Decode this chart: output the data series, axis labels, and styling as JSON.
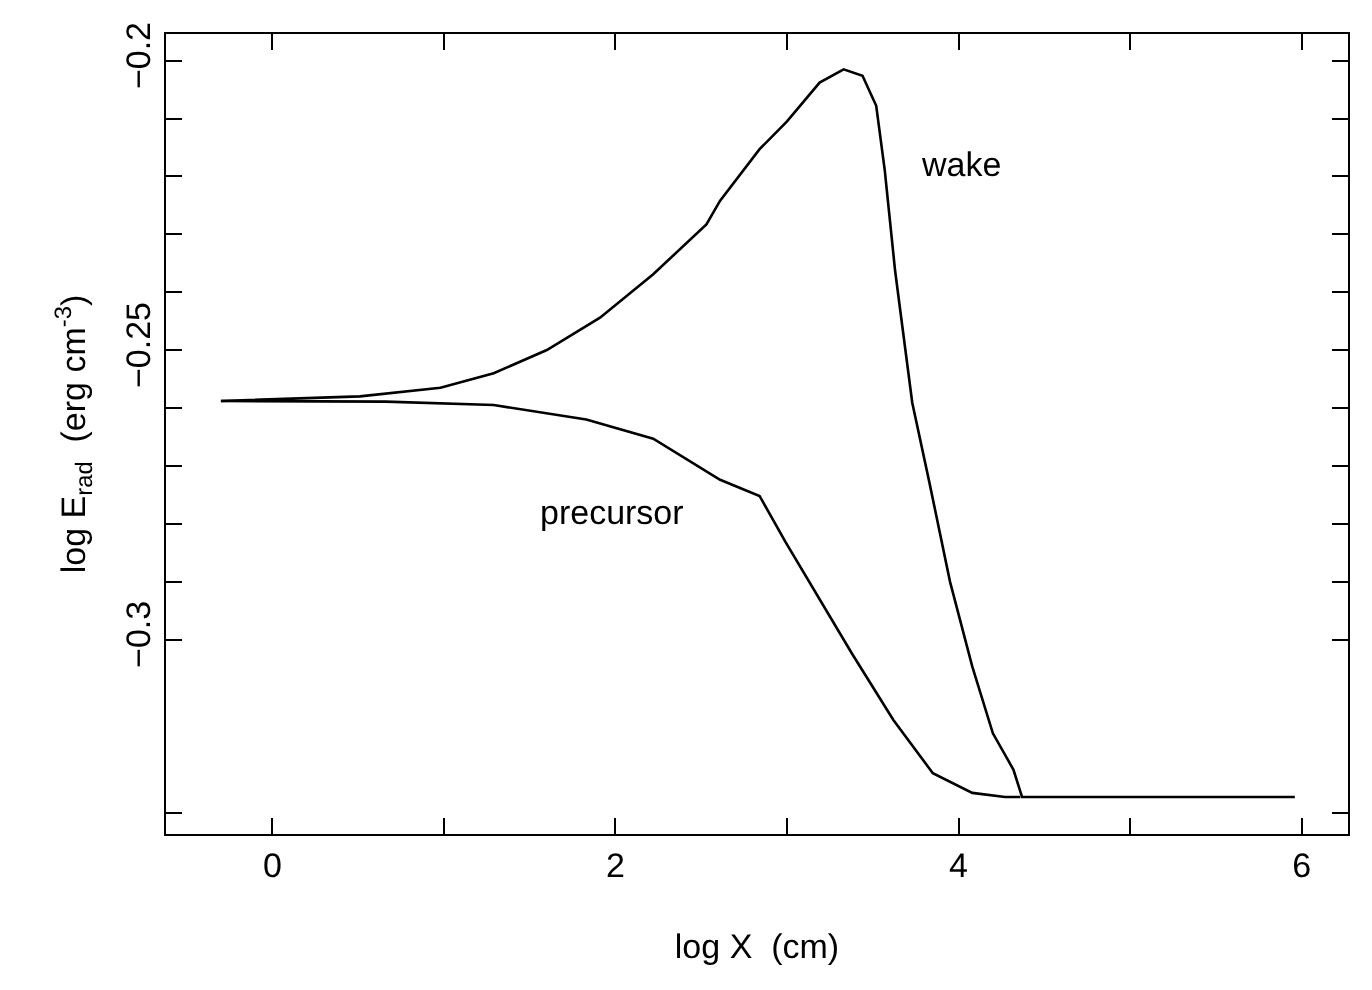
{
  "chart_data": {
    "type": "line",
    "xlabel": "log X  (cm)",
    "ylabel": "log E$_{rad}$  (erg cm$^{-3}$)",
    "xlim": [
      -0.62,
      6.27
    ],
    "ylim": [
      -0.3336,
      -0.1954
    ],
    "xticks": [
      0,
      {
        "value": 1,
        "label": null
      },
      2,
      {
        "value": 3,
        "label": null
      },
      4,
      {
        "value": 5,
        "label": null
      },
      6
    ],
    "yticks": [
      {
        "value": -0.33,
        "label": null
      },
      -0.3,
      {
        "value": -0.29,
        "label": null
      },
      {
        "value": -0.28,
        "label": null
      },
      {
        "value": -0.27,
        "label": null
      },
      {
        "value": -0.26,
        "label": null
      },
      -0.25,
      {
        "value": -0.24,
        "label": null
      },
      {
        "value": -0.23,
        "label": null
      },
      {
        "value": -0.22,
        "label": null
      },
      {
        "value": -0.21,
        "label": null
      },
      -0.2
    ],
    "legend": false,
    "marker": "none",
    "line_style": "solid",
    "series": [
      {
        "color": "#000000",
        "x": [
          -0.3,
          0.51,
          0.98,
          1.29,
          1.6,
          1.91,
          2.22,
          2.53,
          2.61,
          2.84,
          3.0,
          3.19,
          3.33,
          3.44,
          3.52,
          3.57,
          3.63,
          3.73,
          3.83,
          3.95,
          4.08,
          4.2,
          4.32,
          4.37,
          5.96
        ],
        "values": [
          -0.2588,
          -0.258,
          -0.2565,
          -0.254,
          -0.25,
          -0.2444,
          -0.2369,
          -0.2283,
          -0.2242,
          -0.2153,
          -0.2105,
          -0.2038,
          -0.2015,
          -0.2026,
          -0.2078,
          -0.219,
          -0.2363,
          -0.2591,
          -0.2729,
          -0.29,
          -0.3047,
          -0.3162,
          -0.3225,
          -0.3272,
          -0.3272
        ]
      },
      {
        "color": "#000000",
        "x": [
          -0.3,
          0.66,
          1.29,
          1.83,
          2.22,
          2.61,
          2.84,
          2.99,
          3.38,
          3.62,
          3.85,
          4.08,
          4.27,
          4.36
        ],
        "values": [
          -0.2588,
          -0.2589,
          -0.2595,
          -0.262,
          -0.2653,
          -0.2724,
          -0.2752,
          -0.2831,
          -0.3025,
          -0.3139,
          -0.3231,
          -0.3265,
          -0.3272,
          -0.3272
        ]
      }
    ],
    "annotations": [
      "wake",
      "precursor"
    ]
  }
}
